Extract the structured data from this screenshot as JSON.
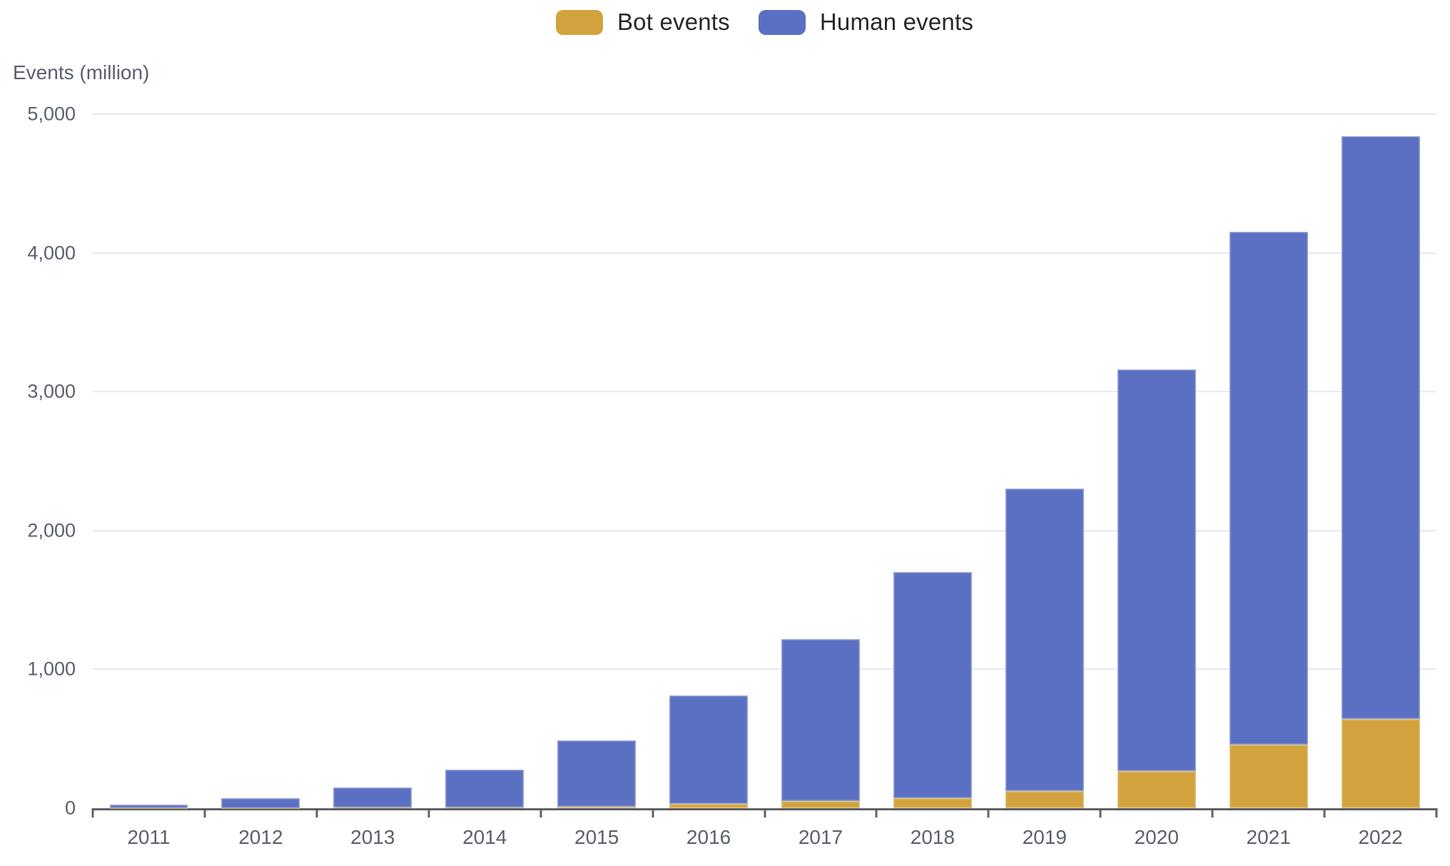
{
  "legend": {
    "items": [
      {
        "label": "Bot events",
        "color": "#d2a23c"
      },
      {
        "label": "Human events",
        "color": "#5b70c2"
      }
    ]
  },
  "y_axis_title": "Events (million)",
  "chart_data": {
    "type": "bar",
    "stacked": true,
    "title": "",
    "xlabel": "",
    "ylabel": "Events (million)",
    "categories": [
      "2011",
      "2012",
      "2013",
      "2014",
      "2015",
      "2016",
      "2017",
      "2018",
      "2019",
      "2020",
      "2021",
      "2022"
    ],
    "series": [
      {
        "name": "Bot events",
        "color": "#d2a23c",
        "values": [
          1,
          1,
          3,
          6,
          12,
          30,
          52,
          73,
          125,
          268,
          456,
          643
        ]
      },
      {
        "name": "Human events",
        "color": "#5b70c2",
        "values": [
          27,
          69,
          147,
          274,
          478,
          780,
          1168,
          1627,
          2175,
          2892,
          3694,
          4197
        ]
      }
    ],
    "totals": [
      28,
      70,
      150,
      280,
      490,
      810,
      1220,
      1700,
      2300,
      3160,
      4150,
      4840
    ],
    "ylim": [
      0,
      5000
    ],
    "yticks": [
      0,
      1000,
      2000,
      3000,
      4000,
      5000
    ],
    "ytick_labels": [
      "0",
      "1,000",
      "2,000",
      "3,000",
      "4,000",
      "5,000"
    ],
    "grid": true,
    "legend_position": "top-center"
  }
}
